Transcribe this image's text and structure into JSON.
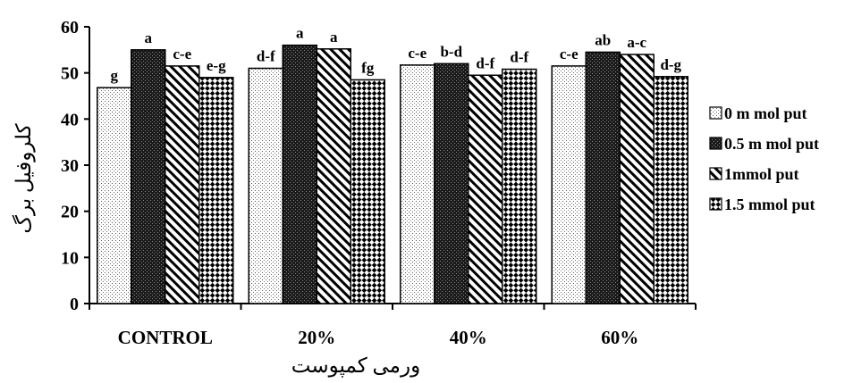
{
  "chart_data": {
    "type": "bar",
    "categories": [
      "CONTROL",
      "20%",
      "40%",
      "60%"
    ],
    "xlabel": "ورمی کمپوست",
    "ylabel": "کلروفیل برگ",
    "ylim": [
      0,
      60
    ],
    "yticks": [
      0,
      10,
      20,
      30,
      40,
      50,
      60
    ],
    "grid": false,
    "legend_position": "right",
    "series": [
      {
        "name": "0 m mol put",
        "pattern": "dots",
        "values": [
          46.8,
          51.0,
          51.7,
          51.5
        ],
        "labels": [
          "g",
          "d-f",
          "c-e",
          "c-e"
        ]
      },
      {
        "name": "0.5 m mol put",
        "pattern": "dense",
        "values": [
          55.0,
          56.0,
          52.0,
          54.5
        ],
        "labels": [
          "a",
          "a",
          "b-d",
          "ab"
        ]
      },
      {
        "name": "1mmol put",
        "pattern": "diagonal",
        "values": [
          51.5,
          55.2,
          49.5,
          54.0
        ],
        "labels": [
          "c-e",
          "a",
          "d-f",
          "a-c"
        ]
      },
      {
        "name": "1.5 mmol put",
        "pattern": "diamond",
        "values": [
          49.0,
          48.5,
          50.8,
          49.2
        ],
        "labels": [
          "e-g",
          "fg",
          "d-f",
          "d-g"
        ]
      }
    ]
  }
}
